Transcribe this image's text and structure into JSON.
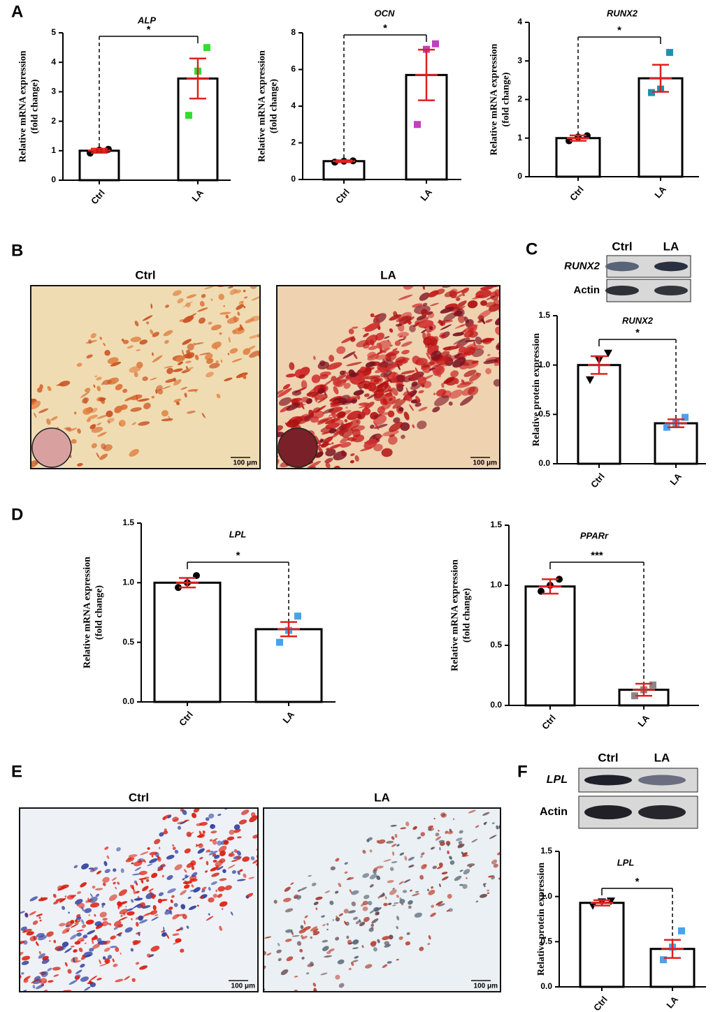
{
  "panels": [
    "A",
    "B",
    "C",
    "D",
    "E",
    "F"
  ],
  "staining": [
    {
      "titles": [
        "Ctrl",
        "LA"
      ],
      "scale_bars": [
        "100 μm",
        "100 μm"
      ]
    },
    {
      "titles": [
        "Ctrl",
        "LA"
      ],
      "scale_bars": [
        "100 μm",
        "100 μm"
      ]
    }
  ],
  "blots": [
    {
      "lanes": [
        "Ctrl",
        "LA"
      ],
      "rows": [
        "RUNX2",
        "Actin"
      ]
    },
    {
      "lanes": [
        "Ctrl",
        "LA"
      ],
      "rows": [
        "LPL",
        "Actin"
      ]
    }
  ],
  "chart_data": [
    {
      "type": "bar",
      "title": "ALP",
      "ylabel": [
        "Relative mRNA expression",
        "(fold change)"
      ],
      "categories": [
        "Ctrl",
        "LA"
      ],
      "values": [
        1.0,
        3.45
      ],
      "errors": [
        0.07,
        0.68
      ],
      "points": [
        [
          0.92,
          1.02,
          1.05
        ],
        [
          2.2,
          3.7,
          4.5
        ]
      ],
      "point_colors": [
        "#000000",
        "#33dd33"
      ],
      "point_shapes": [
        "circle",
        "square"
      ],
      "error_color": "#e02020",
      "significance": "*",
      "ylim": [
        0,
        5
      ],
      "yticks": [
        0,
        1,
        2,
        3,
        4,
        5
      ]
    },
    {
      "type": "bar",
      "title": "OCN",
      "ylabel": [
        "Relative mRNA expression",
        "(fold change)"
      ],
      "categories": [
        "Ctrl",
        "LA"
      ],
      "values": [
        1.0,
        5.7
      ],
      "errors": [
        0.05,
        1.38
      ],
      "points": [
        [
          0.95,
          1.0,
          1.02
        ],
        [
          3.0,
          7.1,
          7.4
        ]
      ],
      "point_colors": [
        "#000000",
        "#c040c0"
      ],
      "point_shapes": [
        "circle",
        "square"
      ],
      "error_color": "#e02020",
      "significance": "*",
      "ylim": [
        0,
        8
      ],
      "yticks": [
        0,
        2,
        4,
        6,
        8
      ]
    },
    {
      "type": "bar",
      "title": "RUNX2",
      "ylabel": [
        "Relative mRNA expression",
        "(fold change)"
      ],
      "categories": [
        "Ctrl",
        "LA"
      ],
      "values": [
        1.0,
        2.55
      ],
      "errors": [
        0.07,
        0.35
      ],
      "points": [
        [
          0.93,
          1.03,
          1.06
        ],
        [
          2.18,
          2.27,
          3.22
        ]
      ],
      "point_colors": [
        "#000000",
        "#2090b0"
      ],
      "point_shapes": [
        "circle",
        "square"
      ],
      "error_color": "#e02020",
      "significance": "*",
      "ylim": [
        0,
        4
      ],
      "yticks": [
        0,
        1,
        2,
        3,
        4
      ]
    },
    {
      "type": "bar",
      "title": "RUNX2",
      "ylabel": [
        "Relative protein expression"
      ],
      "categories": [
        "Ctrl",
        "LA"
      ],
      "values": [
        1.0,
        0.41
      ],
      "errors": [
        0.09,
        0.04
      ],
      "points": [
        [
          0.85,
          1.05,
          1.12
        ],
        [
          0.37,
          0.41,
          0.47
        ]
      ],
      "point_colors": [
        "#000000",
        "#4aa3e8"
      ],
      "point_shapes": [
        "triangle",
        "square"
      ],
      "error_color": "#e02020",
      "significance": "*",
      "ylim": [
        0,
        1.5
      ],
      "yticks": [
        {
          "value": 0,
          "label": "0.0"
        },
        0.5,
        {
          "value": 1,
          "label": "1.0"
        },
        1.5
      ]
    },
    {
      "type": "bar",
      "title": "LPL",
      "ylabel": [
        "Relative mRNA expression",
        "(fold change)"
      ],
      "categories": [
        "Ctrl",
        "LA"
      ],
      "values": [
        1.0,
        0.61
      ],
      "errors": [
        0.04,
        0.06
      ],
      "points": [
        [
          0.96,
          1.0,
          1.06
        ],
        [
          0.5,
          0.6,
          0.72
        ]
      ],
      "point_colors": [
        "#000000",
        "#4aa3e8"
      ],
      "point_shapes": [
        "circle",
        "square"
      ],
      "error_color": "#e02020",
      "significance": "*",
      "ylim": [
        0,
        1.5
      ],
      "yticks": [
        {
          "value": 0,
          "label": "0.0"
        },
        0.5,
        {
          "value": 1,
          "label": "1.0"
        },
        1.5
      ]
    },
    {
      "type": "bar",
      "title": "PPARr",
      "ylabel": [
        "Relative mRNA expression",
        "(fold change)"
      ],
      "categories": [
        "Ctrl",
        "LA"
      ],
      "values": [
        0.99,
        0.13
      ],
      "errors": [
        0.06,
        0.05
      ],
      "points": [
        [
          0.95,
          1.0,
          1.05
        ],
        [
          0.08,
          0.13,
          0.17
        ]
      ],
      "point_colors": [
        "#000000",
        "#888888"
      ],
      "point_shapes": [
        "circle",
        "square"
      ],
      "error_color": "#e02020",
      "significance": "***",
      "ylim": [
        0,
        1.5
      ],
      "yticks": [
        {
          "value": 0,
          "label": "0.0"
        },
        0.5,
        {
          "value": 1,
          "label": "1.0"
        },
        1.5
      ]
    },
    {
      "type": "bar",
      "title": "LPL",
      "ylabel": [
        "Relative protein expression"
      ],
      "categories": [
        "Ctrl",
        "LA"
      ],
      "values": [
        0.93,
        0.42
      ],
      "errors": [
        0.03,
        0.1
      ],
      "points": [
        [
          0.9,
          0.94,
          0.95
        ],
        [
          0.3,
          0.44,
          0.62
        ]
      ],
      "point_colors": [
        "#000000",
        "#4aa3e8"
      ],
      "point_shapes": [
        "triangle",
        "square"
      ],
      "error_color": "#e02020",
      "significance": "*",
      "ylim": [
        0,
        1.5
      ],
      "yticks": [
        {
          "value": 0,
          "label": "0.0"
        },
        0.5,
        {
          "value": 1,
          "label": "1.0"
        },
        1.5
      ]
    }
  ]
}
